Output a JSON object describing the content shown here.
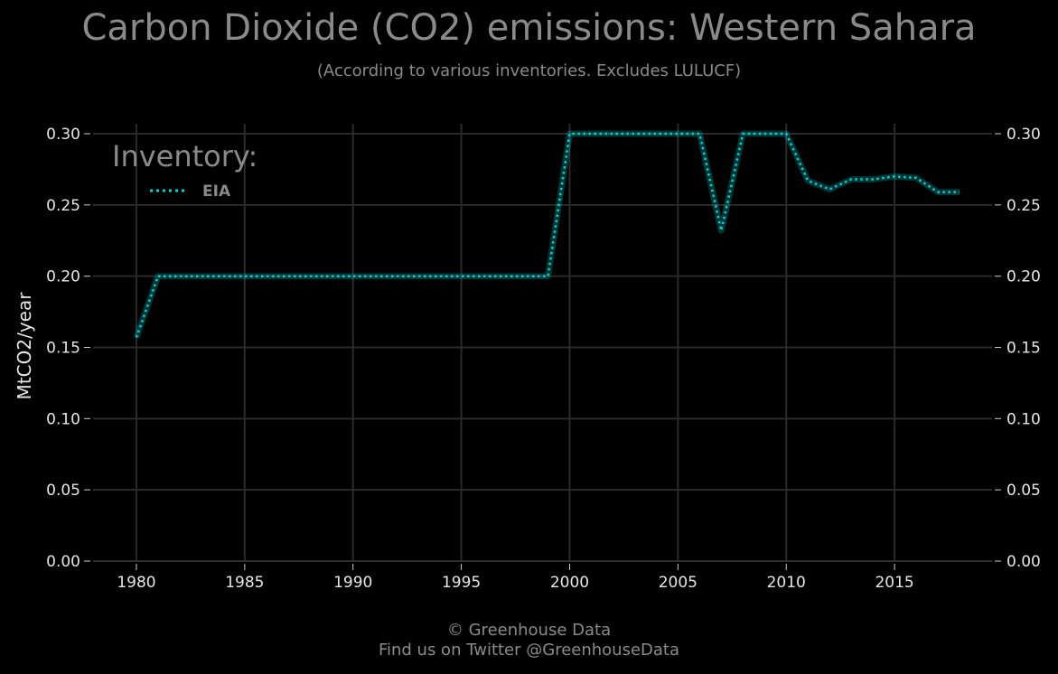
{
  "header": {
    "title": "Carbon Dioxide (CO2) emissions: Western Sahara",
    "subtitle": "(According to various inventories. Excludes LULUCF)"
  },
  "footer": {
    "line1": "© Greenhouse Data",
    "line2": "Find us on Twitter @GreenhouseData"
  },
  "chart_data": {
    "type": "line",
    "title": "Carbon Dioxide (CO2) emissions: Western Sahara",
    "subtitle": "(According to various inventories. Excludes LULUCF)",
    "ylabel": "MtCO2/year",
    "xlabel": "",
    "xlim": [
      1978,
      2019.5
    ],
    "ylim": [
      0,
      0.3
    ],
    "xticks": [
      1980,
      1985,
      1990,
      1995,
      2000,
      2005,
      2010,
      2015
    ],
    "yticks": [
      0.0,
      0.05,
      0.1,
      0.15,
      0.2,
      0.25,
      0.3
    ],
    "ytick_labels": [
      "0.00",
      "0.05",
      "0.10",
      "0.15",
      "0.20",
      "0.25",
      "0.30"
    ],
    "grid": true,
    "legend": {
      "title": "Inventory:",
      "placement": "top-left"
    },
    "series": [
      {
        "name": "EIA",
        "color": "#00d4d4",
        "style": "dotted",
        "x": [
          1980,
          1981,
          1982,
          1983,
          1984,
          1985,
          1986,
          1987,
          1988,
          1989,
          1990,
          1991,
          1992,
          1993,
          1994,
          1995,
          1996,
          1997,
          1998,
          1999,
          2000,
          2001,
          2002,
          2003,
          2004,
          2005,
          2006,
          2007,
          2008,
          2009,
          2010,
          2011,
          2012,
          2013,
          2014,
          2015,
          2016,
          2017,
          2018
        ],
        "values": [
          0.157,
          0.2,
          0.2,
          0.2,
          0.2,
          0.2,
          0.2,
          0.2,
          0.2,
          0.2,
          0.2,
          0.2,
          0.2,
          0.2,
          0.2,
          0.2,
          0.2,
          0.2,
          0.2,
          0.2,
          0.3,
          0.3,
          0.3,
          0.3,
          0.3,
          0.3,
          0.3,
          0.232,
          0.3,
          0.3,
          0.3,
          0.267,
          0.261,
          0.268,
          0.268,
          0.27,
          0.269,
          0.259,
          0.259
        ]
      }
    ]
  }
}
